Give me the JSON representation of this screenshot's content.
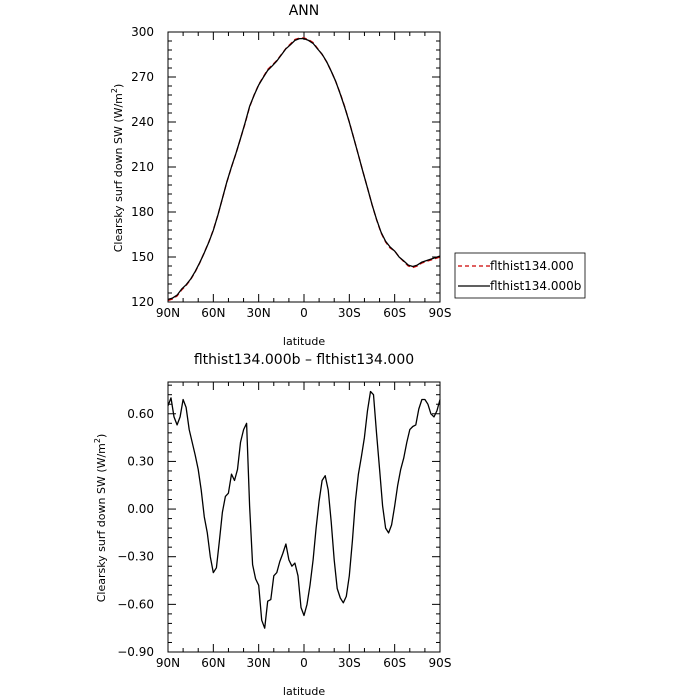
{
  "chart_data": [
    {
      "type": "line",
      "title": "ANN",
      "xlabel": "latitude",
      "ylabel": "Clearsky surf down SW (W/m",
      "ylabel_sup": "2",
      "ylabel_end": ")",
      "xlim": [
        90,
        -90
      ],
      "ylim": [
        120,
        300
      ],
      "x_ticks": [
        90,
        60,
        30,
        0,
        -30,
        -60,
        -90
      ],
      "x_tick_labels": [
        "90N",
        "60N",
        "30N",
        "0",
        "30S",
        "60S",
        "90S"
      ],
      "y_ticks": [
        120,
        150,
        180,
        210,
        240,
        270,
        300
      ],
      "y_tick_labels": [
        "120",
        "150",
        "180",
        "210",
        "240",
        "270",
        "300"
      ],
      "legend_position": "right",
      "series": [
        {
          "name": "flthist134.000",
          "color": "#cc0000",
          "dash": "dashed",
          "x": [
            90,
            87,
            84,
            81,
            78,
            75,
            72,
            69,
            66,
            63,
            60,
            57,
            54,
            51,
            48,
            45,
            42,
            39,
            36,
            33,
            30,
            27,
            24,
            21,
            18,
            15,
            12,
            9,
            6,
            3,
            0,
            -3,
            -6,
            -9,
            -12,
            -15,
            -18,
            -21,
            -24,
            -27,
            -30,
            -33,
            -36,
            -39,
            -42,
            -45,
            -48,
            -51,
            -54,
            -57,
            -60,
            -63,
            -66,
            -69,
            -72,
            -75,
            -78,
            -81,
            -84,
            -87,
            -90
          ],
          "y": [
            121,
            122,
            124,
            128,
            131,
            135,
            140,
            146,
            153,
            160,
            168,
            178,
            189,
            200,
            210,
            219,
            229,
            239,
            250,
            258,
            265,
            270,
            275,
            278,
            281,
            285,
            289,
            292,
            295,
            296,
            296,
            295,
            293,
            289,
            285,
            280,
            274,
            267,
            259,
            250,
            240,
            229,
            218,
            207,
            196,
            185,
            175,
            166,
            160,
            156,
            154,
            150,
            147,
            144,
            143,
            144,
            146,
            147,
            148,
            149,
            150
          ]
        },
        {
          "name": "flthist134.000b",
          "color": "#000000",
          "dash": "solid",
          "x": [
            90,
            87,
            84,
            81,
            78,
            75,
            72,
            69,
            66,
            63,
            60,
            57,
            54,
            51,
            48,
            45,
            42,
            39,
            36,
            33,
            30,
            27,
            24,
            21,
            18,
            15,
            12,
            9,
            6,
            3,
            0,
            -3,
            -6,
            -9,
            -12,
            -15,
            -18,
            -21,
            -24,
            -27,
            -30,
            -33,
            -36,
            -39,
            -42,
            -45,
            -48,
            -51,
            -54,
            -57,
            -60,
            -63,
            -66,
            -69,
            -72,
            -75,
            -78,
            -81,
            -84,
            -87,
            -90
          ],
          "y": [
            121.7,
            122.6,
            124.6,
            128.6,
            131.5,
            135.3,
            140.4,
            146.2,
            152.8,
            159.8,
            167.8,
            177.9,
            189.1,
            200.2,
            210.1,
            219.2,
            229.0,
            239.5,
            250.4,
            257.9,
            264.7,
            269.7,
            274.4,
            277.5,
            280.7,
            284.7,
            288.8,
            291.5,
            294.4,
            295.6,
            295.6,
            294.4,
            292.4,
            288.7,
            285.2,
            280.1,
            273.9,
            267.1,
            258.6,
            249.7,
            239.9,
            228.9,
            218.0,
            206.9,
            195.9,
            185.1,
            175.2,
            166.5,
            160.5,
            156.7,
            153.9,
            149.9,
            147.4,
            144.6,
            143.7,
            144.6,
            146.6,
            147.6,
            148.6,
            149.6,
            150.7
          ]
        }
      ]
    },
    {
      "type": "line",
      "title": "flthist134.000b – flthist134.000",
      "xlabel": "latitude",
      "ylabel": "Clearsky surf down SW (W/m",
      "ylabel_sup": "2",
      "ylabel_end": ")",
      "xlim": [
        90,
        -90
      ],
      "ylim": [
        -0.9,
        0.8
      ],
      "x_ticks": [
        90,
        60,
        30,
        0,
        -30,
        -60,
        -90
      ],
      "x_tick_labels": [
        "90N",
        "60N",
        "30N",
        "0",
        "30S",
        "60S",
        "90S"
      ],
      "y_ticks": [
        -0.9,
        -0.6,
        -0.3,
        0.0,
        0.3,
        0.6
      ],
      "y_tick_labels": [
        "−0.90",
        "−0.60",
        "−0.30",
        "0.00",
        "0.30",
        "0.60"
      ],
      "series": [
        {
          "name": "",
          "color": "#000000",
          "dash": "solid",
          "x": [
            90,
            88,
            86,
            84,
            82,
            80,
            78,
            76,
            74,
            72,
            70,
            68,
            66,
            64,
            62,
            60,
            58,
            56,
            54,
            52,
            50,
            48,
            46,
            44,
            42,
            40,
            38,
            36,
            34,
            32,
            30,
            28,
            26,
            24,
            22,
            20,
            18,
            16,
            14,
            12,
            10,
            8,
            6,
            4,
            2,
            0,
            -2,
            -4,
            -6,
            -8,
            -10,
            -12,
            -14,
            -16,
            -18,
            -20,
            -22,
            -24,
            -26,
            -28,
            -30,
            -32,
            -34,
            -36,
            -38,
            -40,
            -42,
            -44,
            -46,
            -48,
            -50,
            -52,
            -54,
            -56,
            -58,
            -60,
            -62,
            -64,
            -66,
            -68,
            -70,
            -72,
            -74,
            -76,
            -78,
            -80,
            -82,
            -84,
            -86,
            -88,
            -90
          ],
          "y": [
            0.65,
            0.7,
            0.58,
            0.53,
            0.58,
            0.69,
            0.64,
            0.5,
            0.42,
            0.34,
            0.25,
            0.12,
            -0.05,
            -0.15,
            -0.3,
            -0.4,
            -0.37,
            -0.2,
            -0.02,
            0.08,
            0.1,
            0.22,
            0.18,
            0.25,
            0.42,
            0.5,
            0.54,
            0.02,
            -0.35,
            -0.44,
            -0.48,
            -0.7,
            -0.75,
            -0.58,
            -0.57,
            -0.42,
            -0.4,
            -0.33,
            -0.28,
            -0.22,
            -0.32,
            -0.36,
            -0.34,
            -0.42,
            -0.62,
            -0.67,
            -0.6,
            -0.48,
            -0.32,
            -0.12,
            0.05,
            0.18,
            0.21,
            0.12,
            -0.08,
            -0.32,
            -0.5,
            -0.56,
            -0.59,
            -0.55,
            -0.42,
            -0.2,
            0.05,
            0.22,
            0.33,
            0.45,
            0.62,
            0.74,
            0.72,
            0.48,
            0.25,
            0.02,
            -0.12,
            -0.15,
            -0.1,
            0.02,
            0.15,
            0.25,
            0.32,
            0.42,
            0.5,
            0.52,
            0.53,
            0.63,
            0.69,
            0.69,
            0.66,
            0.6,
            0.58,
            0.62,
            0.69
          ]
        }
      ]
    }
  ]
}
